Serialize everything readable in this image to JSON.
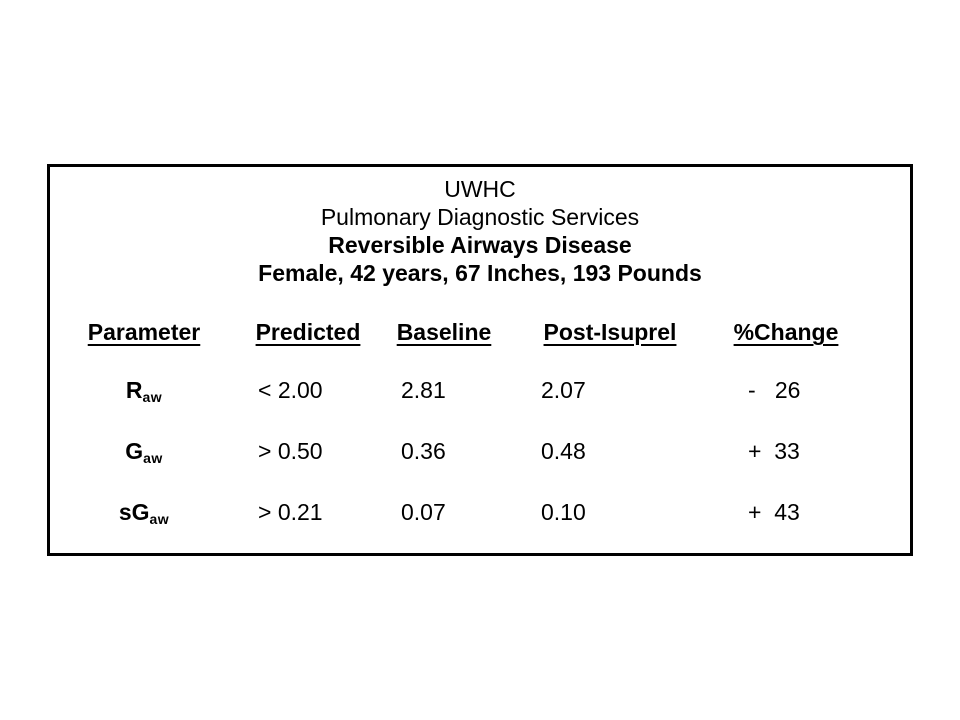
{
  "box": {
    "title_lines": [
      "UWHC",
      "Pulmonary Diagnostic Services",
      "Reversible Airways Disease",
      "Female, 42 years, 67 Inches, 193 Pounds"
    ],
    "table": {
      "headers": [
        "Parameter",
        "Predicted",
        "Baseline",
        "Post-Isuprel",
        "%Change"
      ],
      "rows": [
        {
          "parameter_base": "R",
          "parameter_sub": "aw",
          "predicted": "< 2.00",
          "baseline": "2.81",
          "post_isuprel": "2.07",
          "change": "-   26"
        },
        {
          "parameter_base": "G",
          "parameter_sub": "aw",
          "predicted": "> 0.50",
          "baseline": "0.36",
          "post_isuprel": "0.48",
          "change": "+  33"
        },
        {
          "parameter_base": "sG",
          "parameter_sub": "aw",
          "predicted": "> 0.21",
          "baseline": "0.07",
          "post_isuprel": "0.10",
          "change": "+  43"
        }
      ]
    }
  },
  "colors": {
    "text": "#000000",
    "background": "#ffffff",
    "border": "#000000"
  }
}
